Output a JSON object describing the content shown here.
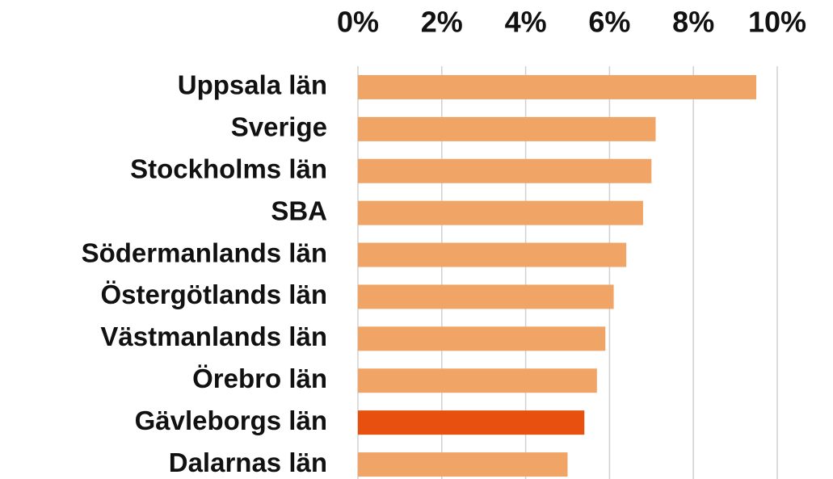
{
  "chart_data": {
    "type": "bar",
    "orientation": "horizontal",
    "categories": [
      "Uppsala län",
      "Sverige",
      "Stockholms län",
      "SBA",
      "Södermanlands län",
      "Östergötlands län",
      "Västmanlands län",
      "Örebro län",
      "Gävleborgs län",
      "Dalarnas län"
    ],
    "values": [
      9.5,
      7.1,
      7.0,
      6.8,
      6.4,
      6.1,
      5.9,
      5.7,
      5.4,
      5.0
    ],
    "colors": [
      "#f0a566",
      "#f0a566",
      "#f0a566",
      "#f0a566",
      "#f0a566",
      "#f0a566",
      "#f0a566",
      "#f0a566",
      "#e8500f",
      "#f0a566"
    ],
    "xlim": [
      0,
      10
    ],
    "xticks": [
      {
        "value": 0,
        "label": "0%"
      },
      {
        "value": 2,
        "label": "2%"
      },
      {
        "value": 4,
        "label": "4%"
      },
      {
        "value": 6,
        "label": "6%"
      },
      {
        "value": 8,
        "label": "8%"
      },
      {
        "value": 10,
        "label": "10%"
      }
    ],
    "grid": true
  }
}
